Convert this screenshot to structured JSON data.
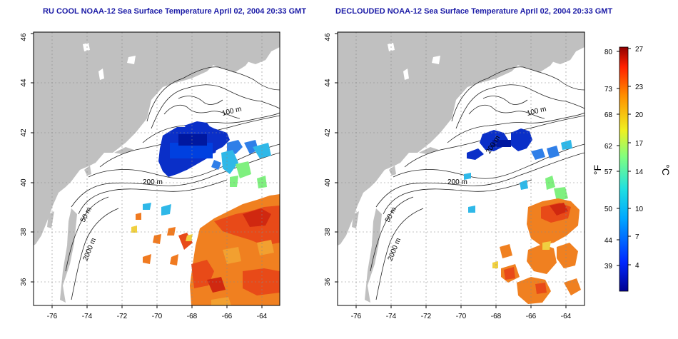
{
  "panels": [
    {
      "title": "RU COOL NOAA-12 Sea Surface Temperature April 02, 2004 20:33 GMT",
      "contour_labels": [
        "100 m",
        "200 m",
        "50 m",
        "2000 m"
      ]
    },
    {
      "title": "DECLOUDED NOAA-12 Sea Surface Temperature April 02, 2004 20:33 GMT",
      "contour_labels": [
        "100 m",
        "200 m",
        "200 m",
        "50 m",
        "2000 m"
      ]
    }
  ],
  "axes": {
    "x_ticks": [
      "-76",
      "-74",
      "-72",
      "-70",
      "-68",
      "-66",
      "-64"
    ],
    "y_ticks": [
      "36",
      "38",
      "40",
      "42",
      "44",
      "46"
    ]
  },
  "colorbar": {
    "f_unit": "°F",
    "c_unit": "°C",
    "f_ticks": [
      "80",
      "73",
      "68",
      "62",
      "57",
      "50",
      "44",
      "39"
    ],
    "c_ticks": [
      "27",
      "23",
      "20",
      "17",
      "14",
      "10",
      "7",
      "4"
    ]
  },
  "colors": {
    "land": "#c0c0c0",
    "water": "#ffffff",
    "title": "#1a1aa6",
    "cold": "#0a2fc8",
    "warm": "#e8521a"
  }
}
